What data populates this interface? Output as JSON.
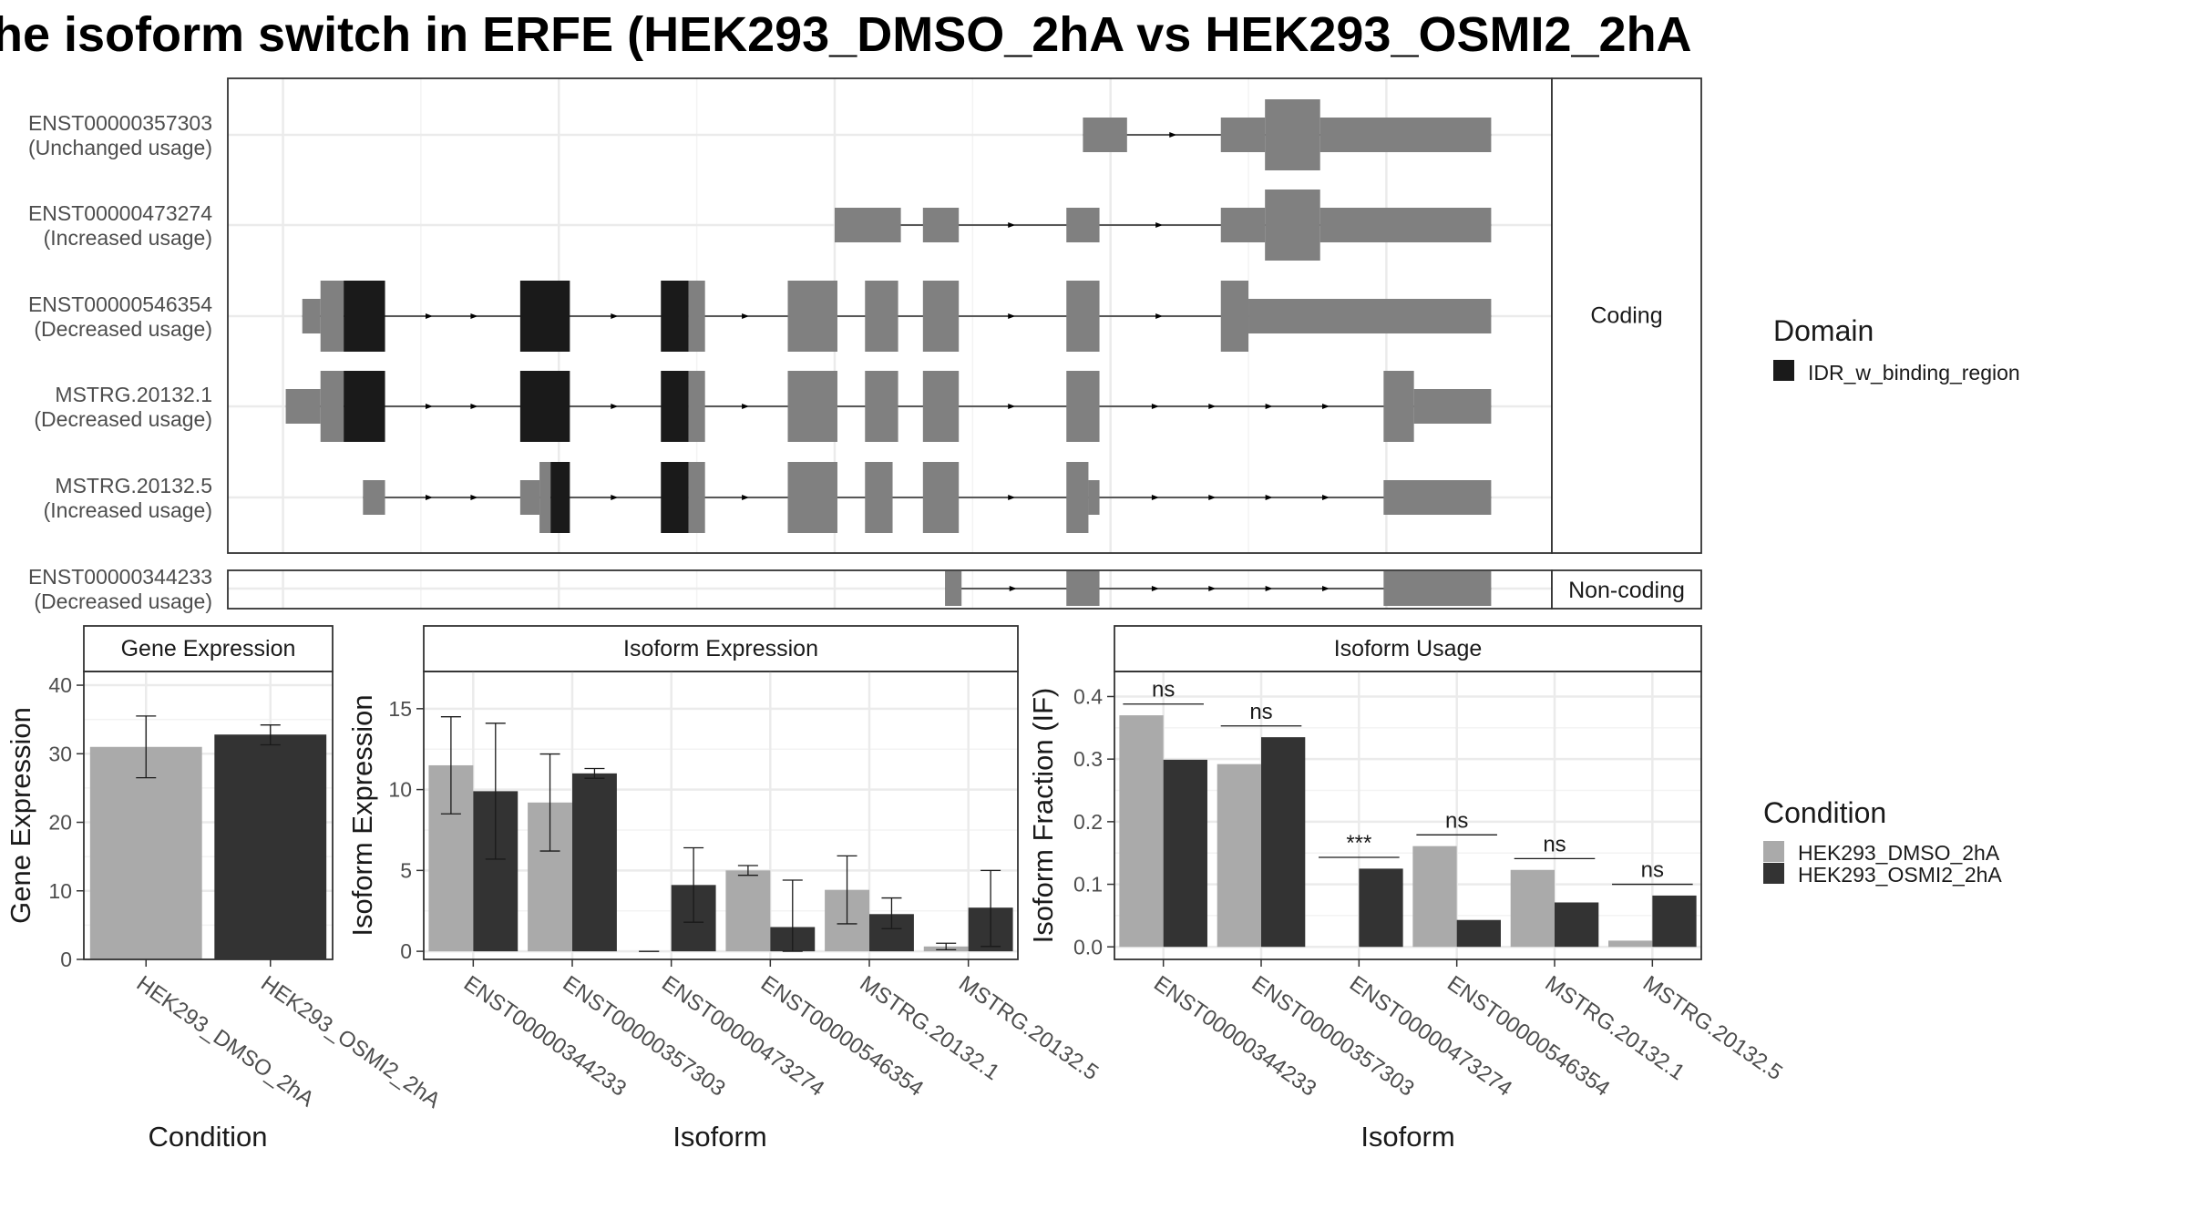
{
  "title": "he isoform switch in ERFE (HEK293_DMSO_2hA vs HEK293_OSMI2_2hA",
  "colors": {
    "domain": "#1a1a1a",
    "exon": "#808080",
    "intron": "#000000",
    "panel_border": "#333333",
    "grid": "#ebebeb",
    "dmso": "#aaaaaa",
    "osmi": "#333333"
  },
  "transcript_panel": {
    "strip_coding": "Coding",
    "strip_noncoding": "Non-coding",
    "transcripts": [
      {
        "id": "ENST00000357303",
        "usage": "(Unchanged usage)",
        "group": "coding",
        "segments": [
          {
            "s": 15.5,
            "e": 16.3,
            "h": 1,
            "k": "exon"
          },
          {
            "s": 18.0,
            "e": 18.8,
            "h": 1,
            "k": "exon"
          },
          {
            "s": 18.8,
            "e": 19.8,
            "h": 2,
            "k": "exon"
          },
          {
            "s": 19.8,
            "e": 22.9,
            "h": 1,
            "k": "exon"
          }
        ]
      },
      {
        "id": "ENST00000473274",
        "usage": "(Increased usage)",
        "group": "coding",
        "segments": [
          {
            "s": 11.0,
            "e": 12.2,
            "h": 1,
            "k": "exon"
          },
          {
            "s": 12.6,
            "e": 13.25,
            "h": 1,
            "k": "exon"
          },
          {
            "s": 15.2,
            "e": 15.8,
            "h": 1,
            "k": "exon"
          },
          {
            "s": 18.0,
            "e": 18.8,
            "h": 1,
            "k": "exon"
          },
          {
            "s": 18.8,
            "e": 19.8,
            "h": 2,
            "k": "exon"
          },
          {
            "s": 19.8,
            "e": 22.9,
            "h": 1,
            "k": "exon"
          }
        ]
      },
      {
        "id": "ENST00000546354",
        "usage": "(Decreased usage)",
        "group": "coding",
        "segments": [
          {
            "s": 1.35,
            "e": 1.68,
            "h": 1,
            "k": "exon"
          },
          {
            "s": 1.68,
            "e": 2.1,
            "h": 2,
            "k": "exon"
          },
          {
            "s": 2.1,
            "e": 2.85,
            "h": 2,
            "k": "domain"
          },
          {
            "s": 5.3,
            "e": 6.2,
            "h": 2,
            "k": "domain"
          },
          {
            "s": 7.85,
            "e": 8.35,
            "h": 2,
            "k": "domain"
          },
          {
            "s": 8.35,
            "e": 8.65,
            "h": 2,
            "k": "exon"
          },
          {
            "s": 10.15,
            "e": 11.05,
            "h": 2,
            "k": "exon"
          },
          {
            "s": 11.55,
            "e": 12.15,
            "h": 2,
            "k": "exon"
          },
          {
            "s": 12.6,
            "e": 13.25,
            "h": 2,
            "k": "exon"
          },
          {
            "s": 15.2,
            "e": 15.8,
            "h": 2,
            "k": "exon"
          },
          {
            "s": 18.0,
            "e": 18.5,
            "h": 2,
            "k": "exon"
          },
          {
            "s": 18.5,
            "e": 22.9,
            "h": 1,
            "k": "exon"
          }
        ]
      },
      {
        "id": "MSTRG.20132.1",
        "usage": "(Decreased usage)",
        "group": "coding",
        "segments": [
          {
            "s": 1.05,
            "e": 1.68,
            "h": 1,
            "k": "exon"
          },
          {
            "s": 1.68,
            "e": 2.1,
            "h": 2,
            "k": "exon"
          },
          {
            "s": 2.1,
            "e": 2.85,
            "h": 2,
            "k": "domain"
          },
          {
            "s": 5.3,
            "e": 6.2,
            "h": 2,
            "k": "domain"
          },
          {
            "s": 7.85,
            "e": 8.35,
            "h": 2,
            "k": "domain"
          },
          {
            "s": 8.35,
            "e": 8.65,
            "h": 2,
            "k": "exon"
          },
          {
            "s": 10.15,
            "e": 11.05,
            "h": 2,
            "k": "exon"
          },
          {
            "s": 11.55,
            "e": 12.15,
            "h": 2,
            "k": "exon"
          },
          {
            "s": 12.6,
            "e": 13.25,
            "h": 2,
            "k": "exon"
          },
          {
            "s": 15.2,
            "e": 15.8,
            "h": 2,
            "k": "exon"
          },
          {
            "s": 20.95,
            "e": 21.5,
            "h": 2,
            "k": "exon"
          },
          {
            "s": 21.5,
            "e": 22.9,
            "h": 1,
            "k": "exon"
          }
        ]
      },
      {
        "id": "MSTRG.20132.5",
        "usage": "(Increased usage)",
        "group": "coding",
        "segments": [
          {
            "s": 2.45,
            "e": 2.85,
            "h": 1,
            "k": "exon"
          },
          {
            "s": 5.3,
            "e": 5.65,
            "h": 1,
            "k": "exon"
          },
          {
            "s": 5.65,
            "e": 5.85,
            "h": 2,
            "k": "exon"
          },
          {
            "s": 5.85,
            "e": 6.2,
            "h": 2,
            "k": "domain"
          },
          {
            "s": 7.85,
            "e": 8.35,
            "h": 2,
            "k": "domain"
          },
          {
            "s": 8.35,
            "e": 8.65,
            "h": 2,
            "k": "exon"
          },
          {
            "s": 10.15,
            "e": 11.05,
            "h": 2,
            "k": "exon"
          },
          {
            "s": 11.55,
            "e": 12.05,
            "h": 2,
            "k": "exon"
          },
          {
            "s": 12.6,
            "e": 13.25,
            "h": 2,
            "k": "exon"
          },
          {
            "s": 15.2,
            "e": 15.6,
            "h": 2,
            "k": "exon"
          },
          {
            "s": 15.6,
            "e": 15.8,
            "h": 1,
            "k": "exon"
          },
          {
            "s": 20.95,
            "e": 22.9,
            "h": 1,
            "k": "exon"
          }
        ]
      },
      {
        "id": "ENST00000344233",
        "usage": "(Decreased usage)",
        "group": "noncoding",
        "segments": [
          {
            "s": 13.0,
            "e": 13.3,
            "h": 1,
            "k": "exon"
          },
          {
            "s": 15.2,
            "e": 15.8,
            "h": 1,
            "k": "exon"
          },
          {
            "s": 20.95,
            "e": 22.9,
            "h": 1,
            "k": "exon"
          }
        ]
      }
    ]
  },
  "domain_legend": {
    "title": "Domain",
    "items": [
      "IDR_w_binding_region"
    ]
  },
  "condition_legend": {
    "title": "Condition",
    "items": [
      "HEK293_DMSO_2hA",
      "HEK293_OSMI2_2hA"
    ]
  },
  "chart_data": [
    {
      "type": "bar",
      "title": "Gene Expression",
      "xlabel": "Condition",
      "ylabel": "Gene Expression",
      "ylim": [
        0,
        42
      ],
      "yticks": [
        0,
        10,
        20,
        30,
        40
      ],
      "categories": [
        "HEK293_DMSO_2hA",
        "HEK293_OSMI2_2hA"
      ],
      "series": [
        {
          "name": "HEK293_DMSO_2hA",
          "values": [
            31.0,
            null
          ],
          "err_low": [
            26.5,
            null
          ],
          "err_high": [
            35.5,
            null
          ]
        },
        {
          "name": "HEK293_OSMI2_2hA",
          "values": [
            null,
            32.8
          ],
          "err_low": [
            null,
            31.3
          ],
          "err_high": [
            null,
            34.2
          ]
        }
      ]
    },
    {
      "type": "bar",
      "title": "Isoform Expression",
      "xlabel": "Isoform",
      "ylabel": "Isoform Expression",
      "ylim": [
        -0.5,
        17.3
      ],
      "yticks": [
        0,
        5,
        10,
        15
      ],
      "categories": [
        "ENST00000344233",
        "ENST00000357303",
        "ENST00000473274",
        "ENST00000546354",
        "MSTRG.20132.1",
        "MSTRG.20132.5"
      ],
      "series": [
        {
          "name": "HEK293_DMSO_2hA",
          "values": [
            11.5,
            9.2,
            0.0,
            5.0,
            3.8,
            0.3
          ],
          "err_low": [
            8.5,
            6.2,
            0.0,
            4.7,
            1.7,
            0.1
          ],
          "err_high": [
            14.5,
            12.2,
            0.0,
            5.3,
            5.9,
            0.5
          ]
        },
        {
          "name": "HEK293_OSMI2_2hA",
          "values": [
            9.9,
            11.0,
            4.1,
            1.5,
            2.3,
            2.7
          ],
          "err_low": [
            5.7,
            10.7,
            1.8,
            0.0,
            1.4,
            0.3
          ],
          "err_high": [
            14.1,
            11.3,
            6.4,
            4.4,
            3.3,
            5.0
          ]
        }
      ]
    },
    {
      "type": "bar",
      "title": "Isoform Usage",
      "xlabel": "Isoform",
      "ylabel": "Isoform Fraction (IF)",
      "ylim": [
        -0.02,
        0.44
      ],
      "yticks": [
        "0.0",
        "0.1",
        "0.2",
        "0.3",
        "0.4"
      ],
      "categories": [
        "ENST00000344233",
        "ENST00000357303",
        "ENST00000473274",
        "ENST00000546354",
        "MSTRG.20132.1",
        "MSTRG.20132.5"
      ],
      "series": [
        {
          "name": "HEK293_DMSO_2hA",
          "values": [
            0.37,
            0.292,
            0.0,
            0.161,
            0.123,
            0.01
          ]
        },
        {
          "name": "HEK293_OSMI2_2hA",
          "values": [
            0.299,
            0.335,
            0.125,
            0.043,
            0.071,
            0.082
          ]
        }
      ],
      "significance": [
        "ns",
        "ns",
        "***",
        "ns",
        "ns",
        "ns"
      ],
      "significance_y": [
        0.388,
        0.353,
        0.143,
        0.179,
        0.141,
        0.1
      ]
    }
  ]
}
